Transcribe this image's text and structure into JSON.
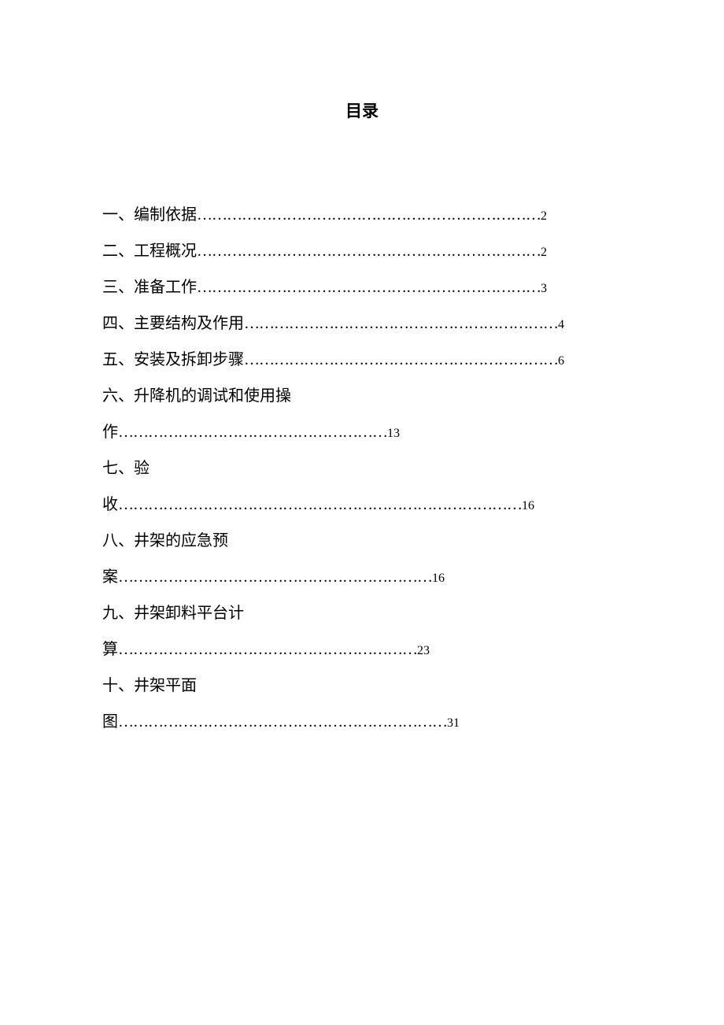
{
  "title": "目录",
  "entries": [
    {
      "label": "一、编制依据",
      "page": "2",
      "dots": "……………………………………………………………",
      "multiline": false
    },
    {
      "label": "二、工程概况",
      "page": "2",
      "dots": "……………………………………………………………",
      "multiline": false
    },
    {
      "label": "三、准备工作",
      "page": "3",
      "dots": "……………………………………………………………",
      "multiline": false
    },
    {
      "label": "四、主要结构及作用",
      "page": "4",
      "dots": "………………………………………………………",
      "multiline": false
    },
    {
      "label": "五、安装及拆卸步骤",
      "page": "6",
      "dots": "………………………………………………………",
      "multiline": false
    },
    {
      "label_line1": "六、升降机的调试和使用操",
      "label_line2": "作",
      "page": "13",
      "dots": "………………………………………………",
      "multiline": true
    },
    {
      "label_line1": "七、验",
      "label_line2": "收",
      "page": "16",
      "dots": "………………………………………………………………………",
      "multiline": true
    },
    {
      "label_line1": "八、井架的应急预",
      "label_line2": "案",
      "page": "16",
      "dots": "………………………………………………………",
      "multiline": true
    },
    {
      "label_line1": "九、井架卸料平台计",
      "label_line2": "算",
      "page": "23",
      "dots": "……………………………………………………",
      "multiline": true
    },
    {
      "label_line1": "十、井架平面",
      "label_line2": "图",
      "page": "31",
      "dots": "…………………………………………………………",
      "multiline": true
    }
  ]
}
